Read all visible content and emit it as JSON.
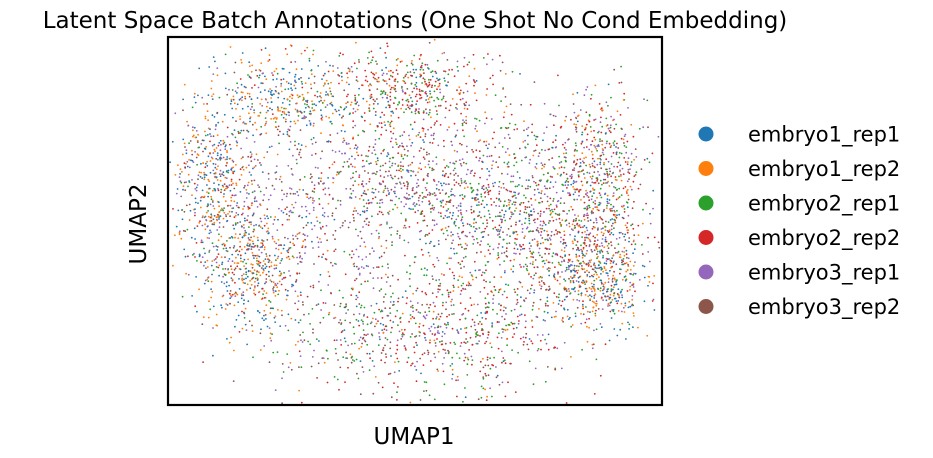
{
  "chart_data": {
    "type": "scatter",
    "title": "Latent Space Batch Annotations (One Shot No Cond Embedding)",
    "xlabel": "UMAP1",
    "ylabel": "UMAP2",
    "xticks": [],
    "yticks": [],
    "grid": false,
    "legend_position": "right",
    "series": [
      {
        "name": "embryo1_rep1",
        "color": "#1f77b4"
      },
      {
        "name": "embryo1_rep2",
        "color": "#ff7f0e"
      },
      {
        "name": "embryo2_rep1",
        "color": "#2ca02c"
      },
      {
        "name": "embryo2_rep2",
        "color": "#d62728"
      },
      {
        "name": "embryo3_rep1",
        "color": "#9467bd"
      },
      {
        "name": "embryo3_rep2",
        "color": "#8c564b"
      }
    ]
  }
}
